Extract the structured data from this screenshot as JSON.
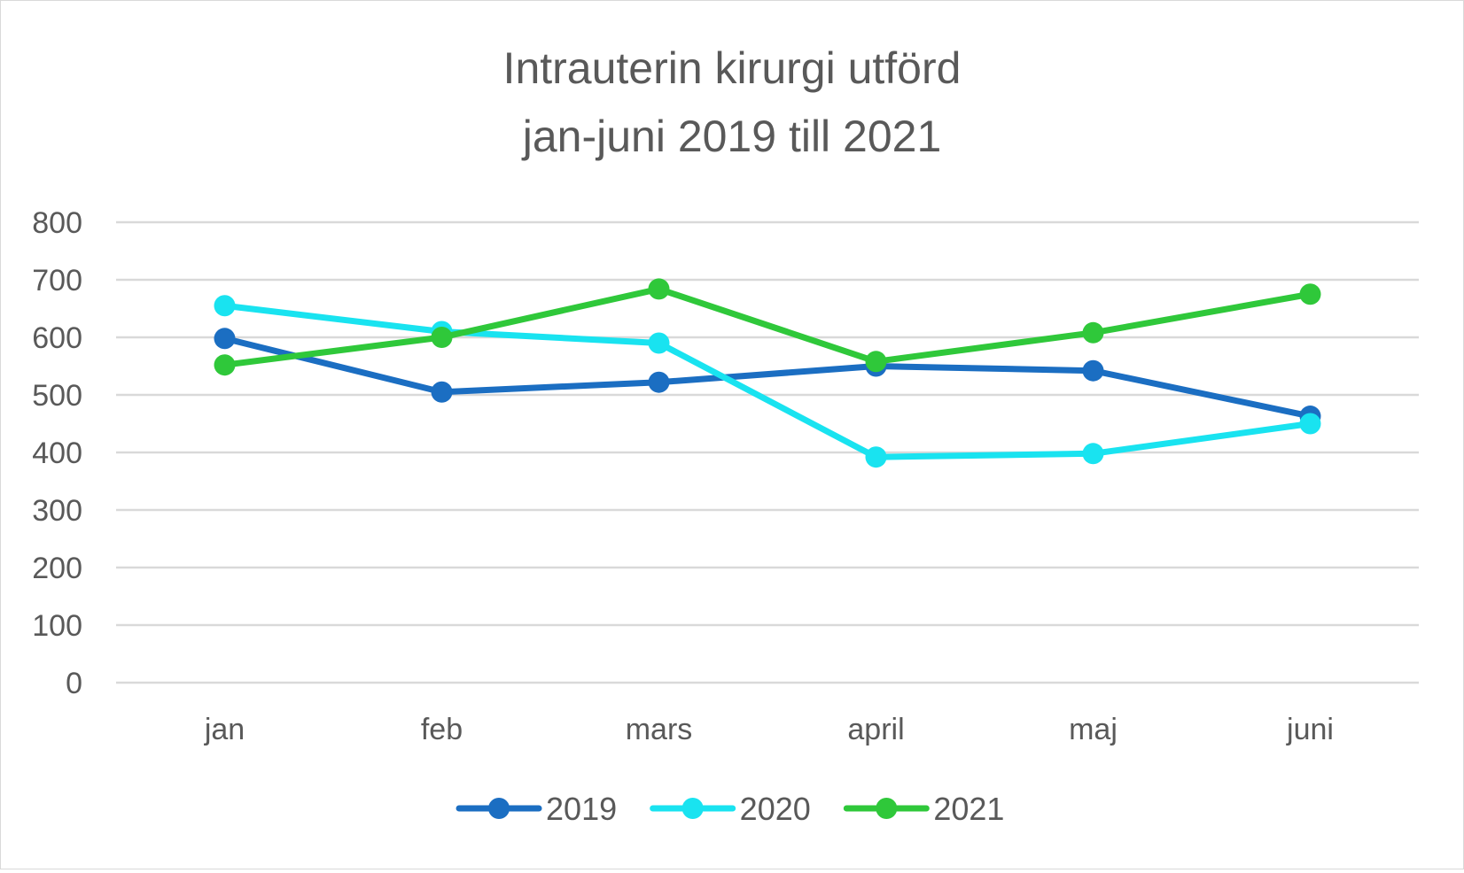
{
  "chart_data": {
    "type": "line",
    "title_lines": [
      "Intrauterin kirurgi utförd",
      "jan-juni 2019 till 2021"
    ],
    "categories": [
      "jan",
      "feb",
      "mars",
      "april",
      "maj",
      "juni"
    ],
    "ylim": [
      0,
      800
    ],
    "y_ticks": [
      "0",
      "100",
      "200",
      "300",
      "400",
      "500",
      "600",
      "700",
      "800"
    ],
    "grid": true,
    "legend_position": "bottom",
    "series": [
      {
        "name": "2019",
        "color": "#1b6ec2",
        "values": [
          598,
          505,
          522,
          550,
          542,
          463
        ]
      },
      {
        "name": "2020",
        "color": "#19e3f0",
        "values": [
          655,
          610,
          590,
          392,
          398,
          450
        ]
      },
      {
        "name": "2021",
        "color": "#2fc83a",
        "values": [
          552,
          600,
          684,
          558,
          608,
          675
        ]
      }
    ]
  }
}
